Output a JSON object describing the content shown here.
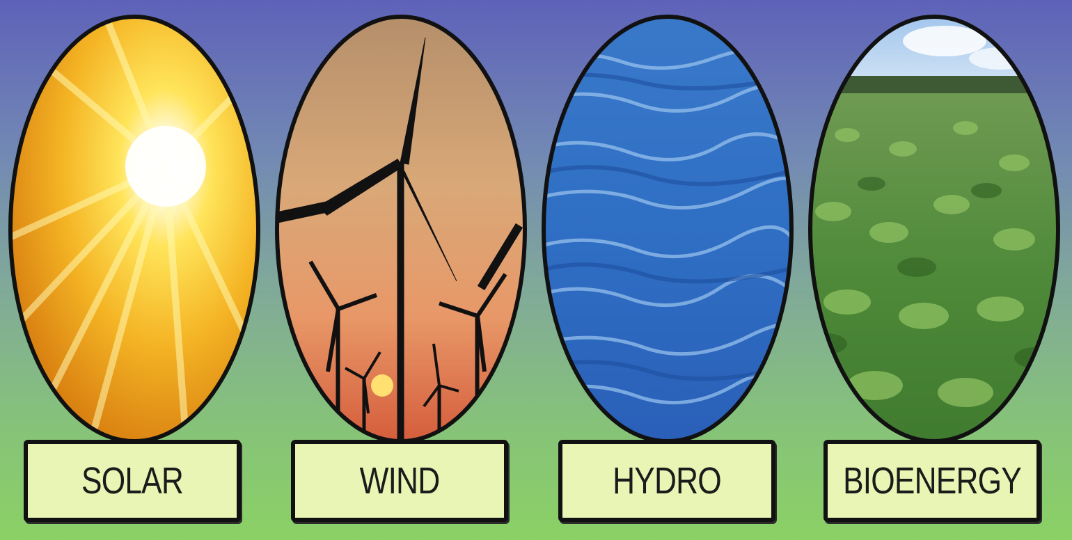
{
  "panels": [
    {
      "key": "solar",
      "label": "SOLAR"
    },
    {
      "key": "wind",
      "label": "WIND"
    },
    {
      "key": "hydro",
      "label": "HYDRO"
    },
    {
      "key": "bioenergy",
      "label": "BIOENERGY"
    }
  ],
  "colors": {
    "sky_top": "#5e62b9",
    "ground_bottom": "#8bd165",
    "label_fill": "#e8f5b4",
    "outline": "#111111"
  }
}
